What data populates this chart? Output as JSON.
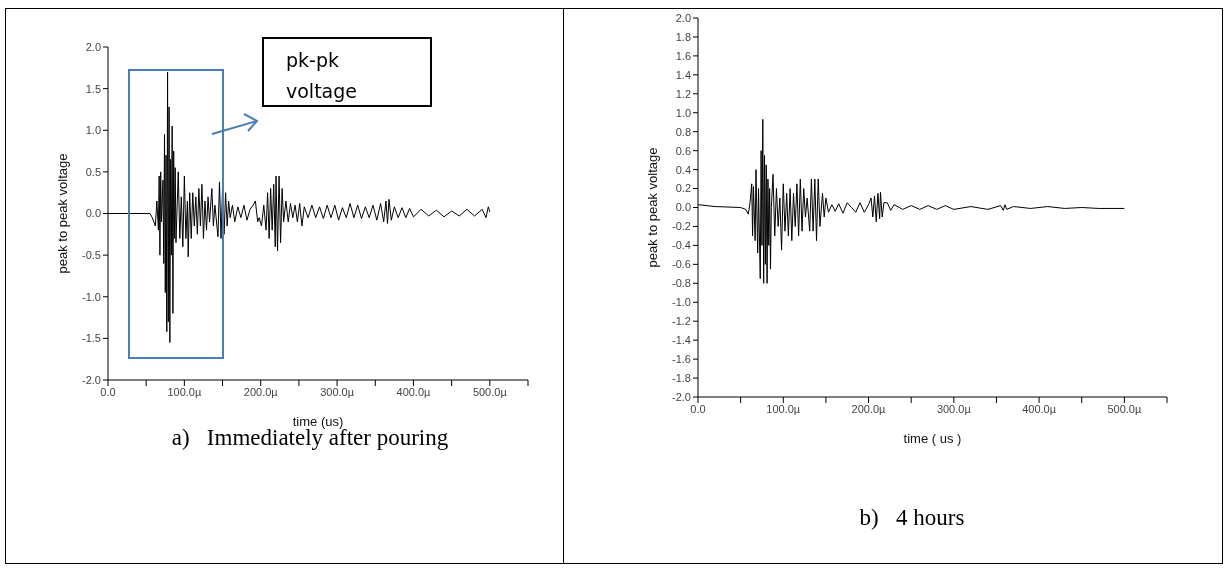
{
  "chart_data": [
    {
      "type": "line",
      "xlabel": "time (us)",
      "ylabel": "peak to peak voltage",
      "xlim": [
        0,
        550
      ],
      "ylim": [
        -2,
        2
      ],
      "xticks": [
        {
          "value": 0,
          "label": "0.0"
        },
        {
          "value": 50,
          "label": null
        },
        {
          "value": 100,
          "label": "100.0µ"
        },
        {
          "value": 150,
          "label": null
        },
        {
          "value": 200,
          "label": "200.0µ"
        },
        {
          "value": 250,
          "label": null
        },
        {
          "value": 300,
          "label": "300.0µ"
        },
        {
          "value": 350,
          "label": null
        },
        {
          "value": 400,
          "label": "400.0µ"
        },
        {
          "value": 450,
          "label": null
        },
        {
          "value": 500,
          "label": "500.0µ"
        },
        {
          "value": 550,
          "label": null
        }
      ],
      "yticks": [
        {
          "value": -2,
          "label": "-2.0"
        },
        {
          "value": -1.5,
          "label": "-1.5"
        },
        {
          "value": -1,
          "label": "-1.0"
        },
        {
          "value": -0.5,
          "label": "-0.5"
        },
        {
          "value": 0,
          "label": "0.0"
        },
        {
          "value": 0.5,
          "label": "0.5"
        },
        {
          "value": 1,
          "label": "1.0"
        },
        {
          "value": 1.5,
          "label": "1.5"
        },
        {
          "value": 2,
          "label": "2.0"
        }
      ],
      "grid": false,
      "marker": "none",
      "line_style": "solid",
      "annotations": [
        "pk-pk voltage",
        "a)   Immediately after pouring"
      ],
      "series": [
        {
          "color": "#000000",
          "x": [
            0,
            55,
            58,
            62,
            64,
            66,
            67,
            68,
            69,
            70,
            72,
            73,
            74,
            75,
            76,
            77,
            78,
            79,
            80,
            81,
            82,
            83,
            84,
            85,
            86,
            87,
            88,
            89,
            92,
            94,
            96,
            98,
            100,
            102,
            104,
            105,
            107,
            109,
            111,
            113,
            115,
            117,
            119,
            121,
            123,
            125,
            127,
            129,
            131,
            133,
            136,
            138,
            140,
            144,
            146,
            148,
            150,
            152,
            154,
            156,
            158,
            160,
            163,
            166,
            170,
            174,
            178,
            182,
            186,
            190,
            193,
            196,
            198,
            201,
            204,
            207,
            209,
            211,
            213,
            215,
            217,
            219,
            220,
            222,
            224,
            226,
            228,
            230,
            233,
            236,
            239,
            242,
            245,
            248,
            251,
            254,
            257,
            262,
            267,
            272,
            277,
            282,
            287,
            292,
            297,
            302,
            307,
            312,
            317,
            322,
            327,
            332,
            337,
            342,
            347,
            352,
            357,
            361,
            364,
            366,
            368,
            371,
            375,
            380,
            385,
            390,
            395,
            400,
            410,
            420,
            430,
            440,
            450,
            460,
            470,
            480,
            490,
            495,
            498,
            500
          ],
          "values": [
            0,
            0,
            -0.05,
            -0.15,
            0.15,
            -0.2,
            0.45,
            -0.5,
            0.5,
            -0.1,
            0.4,
            -0.6,
            0.95,
            -0.95,
            0.7,
            -1.42,
            1.7,
            -1.3,
            1.28,
            -1.55,
            0.65,
            -0.5,
            1.05,
            -1.2,
            0.75,
            -0.3,
            0.55,
            -0.35,
            0.5,
            -0.3,
            0.2,
            -0.4,
            0.45,
            -0.3,
            0.15,
            -0.52,
            0.25,
            -0.3,
            0.25,
            -0.15,
            0.2,
            -0.25,
            0.3,
            -0.15,
            0.35,
            -0.3,
            0.15,
            -0.2,
            0.2,
            -0.1,
            0.3,
            -0.15,
            0.1,
            -0.28,
            0.38,
            -0.3,
            0.3,
            -0.25,
            0.25,
            -0.15,
            0.15,
            -0.05,
            0.1,
            -0.1,
            0.08,
            -0.05,
            0.1,
            -0.08,
            0.05,
            0.1,
            0.15,
            -0.1,
            -0.05,
            -0.15,
            0.1,
            -0.2,
            0.25,
            -0.3,
            0.3,
            -0.2,
            0.35,
            -0.4,
            0.45,
            -0.45,
            0.45,
            -0.35,
            0.3,
            -0.1,
            0.15,
            -0.1,
            0.12,
            -0.05,
            0.1,
            -0.1,
            0.12,
            -0.15,
            0.08,
            -0.05,
            0.1,
            -0.05,
            0.08,
            -0.06,
            0.1,
            -0.05,
            0.1,
            -0.08,
            0.07,
            -0.05,
            0.12,
            -0.05,
            0.1,
            -0.06,
            0.08,
            -0.05,
            0.1,
            -0.08,
            0.12,
            -0.1,
            0.15,
            -0.12,
            0.17,
            -0.08,
            0.08,
            -0.05,
            0.07,
            -0.05,
            0.06,
            -0.04,
            0.05,
            -0.03,
            0.04,
            -0.04,
            0.03,
            -0.03,
            0.05,
            -0.03,
            0.05,
            -0.05,
            0.08,
            0.02
          ]
        }
      ]
    },
    {
      "type": "line",
      "xlabel": "time ( us )",
      "ylabel": "peak to peak voltage",
      "xlim": [
        0,
        550
      ],
      "ylim": [
        -2,
        2
      ],
      "xticks": [
        {
          "value": 0,
          "label": "0.0"
        },
        {
          "value": 50,
          "label": null
        },
        {
          "value": 100,
          "label": "100.0µ"
        },
        {
          "value": 150,
          "label": null
        },
        {
          "value": 200,
          "label": "200.0µ"
        },
        {
          "value": 250,
          "label": null
        },
        {
          "value": 300,
          "label": "300.0µ"
        },
        {
          "value": 350,
          "label": null
        },
        {
          "value": 400,
          "label": "400.0µ"
        },
        {
          "value": 450,
          "label": null
        },
        {
          "value": 500,
          "label": "500.0µ"
        },
        {
          "value": 550,
          "label": null
        }
      ],
      "yticks": [
        {
          "value": -2,
          "label": "-2.0"
        },
        {
          "value": -1.8,
          "label": "-1.8"
        },
        {
          "value": -1.6,
          "label": "-1.6"
        },
        {
          "value": -1.4,
          "label": "-1.4"
        },
        {
          "value": -1.2,
          "label": "-1.2"
        },
        {
          "value": -1,
          "label": "-1.0"
        },
        {
          "value": -0.8,
          "label": "-0.8"
        },
        {
          "value": -0.6,
          "label": "-0.6"
        },
        {
          "value": -0.4,
          "label": "-0.4"
        },
        {
          "value": -0.2,
          "label": "-0.2"
        },
        {
          "value": 0,
          "label": "0.0"
        },
        {
          "value": 0.2,
          "label": "0.2"
        },
        {
          "value": 0.4,
          "label": "0.4"
        },
        {
          "value": 0.6,
          "label": "0.6"
        },
        {
          "value": 0.8,
          "label": "0.8"
        },
        {
          "value": 1,
          "label": "1.0"
        },
        {
          "value": 1.2,
          "label": "1.2"
        },
        {
          "value": 1.4,
          "label": "1.4"
        },
        {
          "value": 1.6,
          "label": "1.6"
        },
        {
          "value": 1.8,
          "label": "1.8"
        },
        {
          "value": 2,
          "label": "2.0"
        }
      ],
      "grid": false,
      "marker": "none",
      "line_style": "solid",
      "annotations": [
        "b)   4 hours"
      ],
      "series": [
        {
          "color": "#000000",
          "x": [
            0,
            20,
            50,
            56,
            59,
            61,
            63,
            64,
            65,
            67,
            68,
            70,
            71,
            73,
            74,
            75,
            76,
            77,
            78,
            79,
            80,
            81,
            82,
            83,
            84,
            85,
            86,
            88,
            90,
            92,
            94,
            96,
            98,
            100,
            102,
            104,
            106,
            108,
            110,
            112,
            114,
            116,
            118,
            120,
            122,
            124,
            126,
            128,
            131,
            133,
            135,
            137,
            139,
            141,
            143,
            146,
            148,
            150,
            153,
            157,
            161,
            165,
            170,
            175,
            180,
            185,
            190,
            195,
            200,
            203,
            205,
            207,
            209,
            211,
            213,
            214,
            216,
            218,
            222,
            226,
            230,
            240,
            250,
            260,
            270,
            280,
            290,
            300,
            320,
            340,
            355,
            358,
            360,
            362,
            370,
            390,
            410,
            430,
            450,
            470,
            500
          ],
          "values": [
            0.03,
            0.01,
            0,
            -0.02,
            -0.07,
            0.05,
            0.25,
            -0.3,
            0.22,
            -0.35,
            0.4,
            -0.48,
            0.2,
            -0.75,
            0.6,
            -0.4,
            0.93,
            -0.8,
            0.55,
            -0.6,
            0.45,
            -0.8,
            0.3,
            -0.4,
            0.2,
            -0.65,
            0,
            0.35,
            -0.3,
            0.2,
            -0.2,
            0.1,
            -0.45,
            0.25,
            -0.25,
            0.15,
            -0.3,
            0.2,
            -0.35,
            0.15,
            -0.2,
            0.25,
            -0.3,
            0.3,
            -0.25,
            0.2,
            -0.1,
            0.1,
            -0.25,
            0.3,
            -0.25,
            0.3,
            -0.35,
            0.3,
            -0.2,
            0.15,
            -0.1,
            0.1,
            -0.05,
            0.03,
            -0.04,
            0.04,
            -0.06,
            0.05,
            0,
            -0.05,
            0.05,
            -0.05,
            0.03,
            0.1,
            -0.1,
            0.12,
            -0.15,
            0.15,
            -0.12,
            0.16,
            -0.1,
            0.05,
            0.05,
            -0.03,
            0.03,
            -0.02,
            0.02,
            -0.02,
            0.02,
            -0.02,
            0.02,
            -0.02,
            0.01,
            -0.02,
            0.02,
            -0.03,
            0.03,
            -0.02,
            0.01,
            -0.01,
            0.01,
            -0.01,
            0,
            -0.01,
            -0.01
          ]
        }
      ]
    }
  ]
}
